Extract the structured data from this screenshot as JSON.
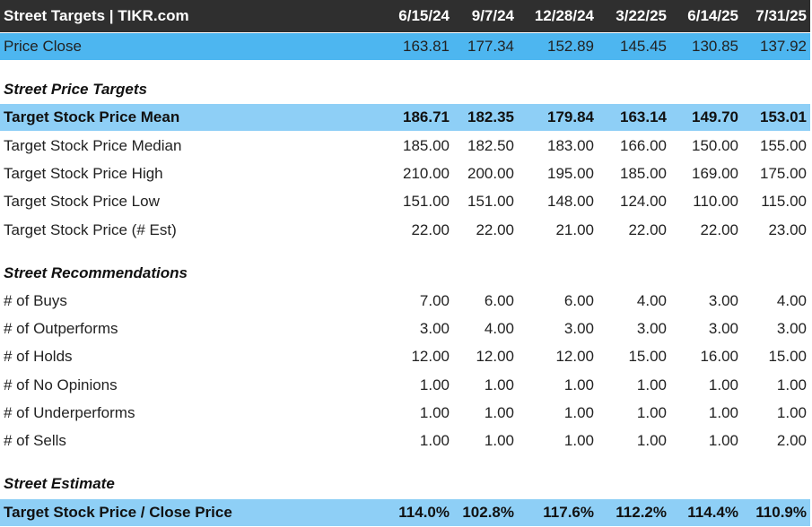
{
  "header": {
    "title": "Street Targets | TIKR.com",
    "columns": [
      "6/15/24",
      "9/7/24",
      "12/28/24",
      "3/22/25",
      "6/14/25",
      "7/31/25"
    ]
  },
  "price_close": {
    "label": "Price Close",
    "values": [
      "163.81",
      "177.34",
      "152.89",
      "145.45",
      "130.85",
      "137.92"
    ]
  },
  "sections": [
    {
      "title": "Street Price Targets",
      "rows": [
        {
          "label": "Target Stock Price Mean",
          "highlight": true,
          "values": [
            "186.71",
            "182.35",
            "179.84",
            "163.14",
            "149.70",
            "153.01"
          ]
        },
        {
          "label": "Target Stock Price Median",
          "values": [
            "185.00",
            "182.50",
            "183.00",
            "166.00",
            "150.00",
            "155.00"
          ]
        },
        {
          "label": "Target Stock Price High",
          "values": [
            "210.00",
            "200.00",
            "195.00",
            "185.00",
            "169.00",
            "175.00"
          ]
        },
        {
          "label": "Target Stock Price Low",
          "values": [
            "151.00",
            "151.00",
            "148.00",
            "124.00",
            "110.00",
            "115.00"
          ]
        },
        {
          "label": "Target Stock Price (# Est)",
          "values": [
            "22.00",
            "22.00",
            "21.00",
            "22.00",
            "22.00",
            "23.00"
          ]
        }
      ]
    },
    {
      "title": "Street Recommendations",
      "rows": [
        {
          "label": "# of Buys",
          "values": [
            "7.00",
            "6.00",
            "6.00",
            "4.00",
            "3.00",
            "4.00"
          ]
        },
        {
          "label": "# of Outperforms",
          "values": [
            "3.00",
            "4.00",
            "3.00",
            "3.00",
            "3.00",
            "3.00"
          ]
        },
        {
          "label": "# of Holds",
          "values": [
            "12.00",
            "12.00",
            "12.00",
            "15.00",
            "16.00",
            "15.00"
          ]
        },
        {
          "label": "# of No Opinions",
          "values": [
            "1.00",
            "1.00",
            "1.00",
            "1.00",
            "1.00",
            "1.00"
          ]
        },
        {
          "label": "# of Underperforms",
          "values": [
            "1.00",
            "1.00",
            "1.00",
            "1.00",
            "1.00",
            "1.00"
          ]
        },
        {
          "label": "# of Sells",
          "values": [
            "1.00",
            "1.00",
            "1.00",
            "1.00",
            "1.00",
            "2.00"
          ]
        }
      ]
    },
    {
      "title": "Street Estimate",
      "rows": [
        {
          "label": "Target Stock Price / Close Price",
          "highlight": true,
          "values": [
            "114.0%",
            "102.8%",
            "117.6%",
            "112.2%",
            "114.4%",
            "110.9%"
          ]
        }
      ]
    }
  ]
}
